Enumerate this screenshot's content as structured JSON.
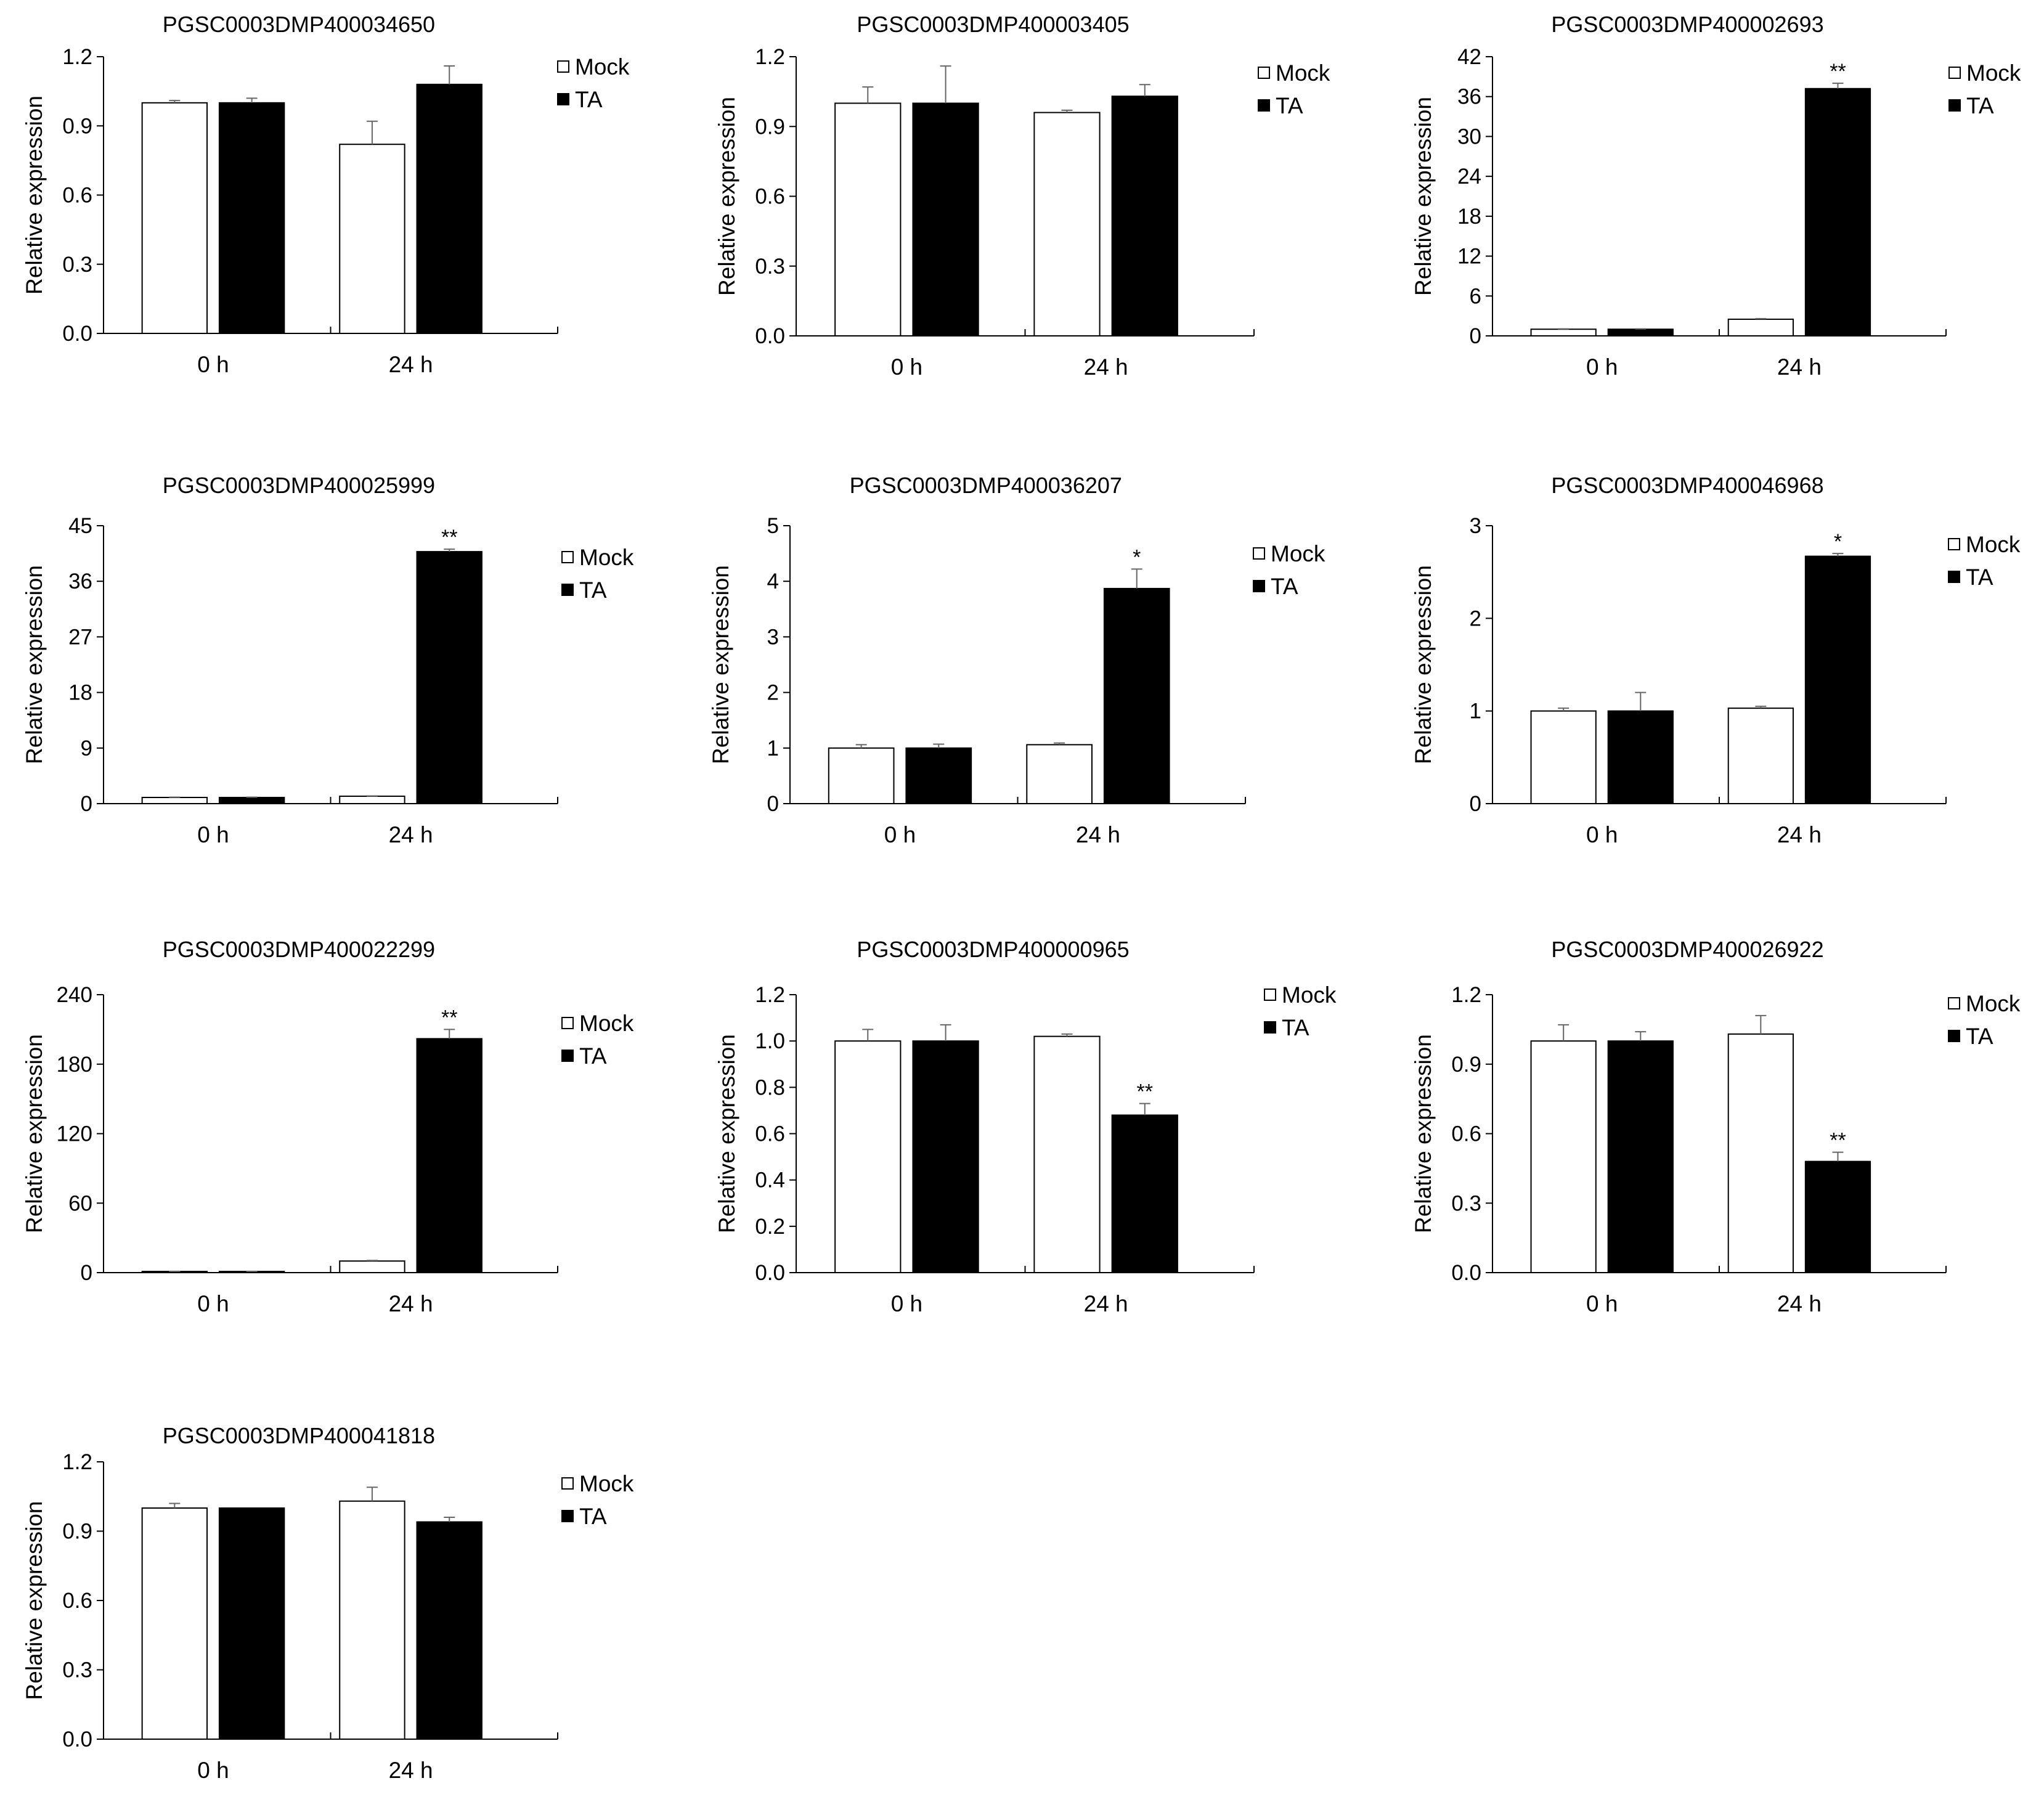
{
  "figure": {
    "y_axis_label": "Relative expression"
  },
  "legend": {
    "mock_label": "Mock",
    "ta_label": "TA",
    "mock_color": "#ffffff",
    "ta_color": "#000000"
  },
  "chart_data": [
    {
      "type": "bar",
      "title": "PGSC0003DMP400034650",
      "categories": [
        "0 h",
        "24 h"
      ],
      "series": [
        {
          "name": "Mock",
          "values": [
            1.0,
            0.82
          ],
          "errors": [
            0.01,
            0.1
          ]
        },
        {
          "name": "TA",
          "values": [
            1.0,
            1.08
          ],
          "errors": [
            0.02,
            0.08
          ]
        }
      ],
      "significance": [
        "",
        ""
      ],
      "ylabel": "Relative expression",
      "ylim": [
        0,
        1.2
      ],
      "yticks": [
        "0.0",
        "0.3",
        "0.6",
        "0.9",
        "1.2"
      ]
    },
    {
      "type": "bar",
      "title": "PGSC0003DMP400003405",
      "categories": [
        "0 h",
        "24 h"
      ],
      "series": [
        {
          "name": "Mock",
          "values": [
            1.0,
            0.96
          ],
          "errors": [
            0.07,
            0.01
          ]
        },
        {
          "name": "TA",
          "values": [
            1.0,
            1.03
          ],
          "errors": [
            0.16,
            0.05
          ]
        }
      ],
      "significance": [
        "",
        ""
      ],
      "ylabel": "Relative expression",
      "ylim": [
        0,
        1.2
      ],
      "yticks": [
        "0.0",
        "0.3",
        "0.6",
        "0.9",
        "1.2"
      ]
    },
    {
      "type": "bar",
      "title": "PGSC0003DMP400002693",
      "categories": [
        "0 h",
        "24 h"
      ],
      "series": [
        {
          "name": "Mock",
          "values": [
            1.0,
            2.5
          ],
          "errors": [
            0.05,
            0.1
          ]
        },
        {
          "name": "TA",
          "values": [
            1.0,
            37.2
          ],
          "errors": [
            0.05,
            0.8
          ]
        }
      ],
      "significance": [
        "",
        "**"
      ],
      "ylabel": "Relative expression",
      "ylim": [
        0,
        42
      ],
      "yticks": [
        "0",
        "6",
        "12",
        "18",
        "24",
        "30",
        "36",
        "42"
      ]
    },
    {
      "type": "bar",
      "title": "PGSC0003DMP400025999",
      "categories": [
        "0 h",
        "24 h"
      ],
      "series": [
        {
          "name": "Mock",
          "values": [
            1.0,
            1.2
          ],
          "errors": [
            0.05,
            0.05
          ]
        },
        {
          "name": "TA",
          "values": [
            1.0,
            40.8
          ],
          "errors": [
            0.05,
            0.4
          ]
        }
      ],
      "significance": [
        "",
        "**"
      ],
      "ylabel": "Relative expression",
      "ylim": [
        0,
        45
      ],
      "yticks": [
        "0",
        "9",
        "18",
        "27",
        "36",
        "45"
      ]
    },
    {
      "type": "bar",
      "title": "PGSC0003DMP400036207",
      "categories": [
        "0 h",
        "24 h"
      ],
      "series": [
        {
          "name": "Mock",
          "values": [
            1.0,
            1.06
          ],
          "errors": [
            0.06,
            0.03
          ]
        },
        {
          "name": "TA",
          "values": [
            1.0,
            3.87
          ],
          "errors": [
            0.07,
            0.35
          ]
        }
      ],
      "significance": [
        "",
        "*"
      ],
      "ylabel": "Relative expression",
      "ylim": [
        0,
        5
      ],
      "yticks": [
        "0",
        "1",
        "2",
        "3",
        "4",
        "5"
      ]
    },
    {
      "type": "bar",
      "title": "PGSC0003DMP400046968",
      "categories": [
        "0 h",
        "24 h"
      ],
      "series": [
        {
          "name": "Mock",
          "values": [
            1.0,
            1.03
          ],
          "errors": [
            0.03,
            0.02
          ]
        },
        {
          "name": "TA",
          "values": [
            1.0,
            2.67
          ],
          "errors": [
            0.2,
            0.03
          ]
        }
      ],
      "significance": [
        "",
        "*"
      ],
      "ylabel": "Relative expression",
      "ylim": [
        0,
        3
      ],
      "yticks": [
        "0",
        "1",
        "2",
        "3"
      ]
    },
    {
      "type": "bar",
      "title": "PGSC0003DMP400022299",
      "categories": [
        "0 h",
        "24 h"
      ],
      "series": [
        {
          "name": "Mock",
          "values": [
            1.0,
            10.0
          ],
          "errors": [
            0.1,
            0.5
          ]
        },
        {
          "name": "TA",
          "values": [
            1.0,
            202.0
          ],
          "errors": [
            0.1,
            8.0
          ]
        }
      ],
      "significance": [
        "",
        "**"
      ],
      "ylabel": "Relative expression",
      "ylim": [
        0,
        240
      ],
      "yticks": [
        "0",
        "60",
        "120",
        "180",
        "240"
      ]
    },
    {
      "type": "bar",
      "title": "PGSC0003DMP400000965",
      "categories": [
        "0 h",
        "24 h"
      ],
      "series": [
        {
          "name": "Mock",
          "values": [
            1.0,
            1.02
          ],
          "errors": [
            0.05,
            0.01
          ]
        },
        {
          "name": "TA",
          "values": [
            1.0,
            0.68
          ],
          "errors": [
            0.07,
            0.05
          ]
        }
      ],
      "significance": [
        "",
        "**"
      ],
      "ylabel": "Relative expression",
      "ylim": [
        0,
        1.2
      ],
      "yticks": [
        "0.0",
        "0.2",
        "0.4",
        "0.6",
        "0.8",
        "1.0",
        "1.2"
      ]
    },
    {
      "type": "bar",
      "title": "PGSC0003DMP400026922",
      "categories": [
        "0 h",
        "24 h"
      ],
      "series": [
        {
          "name": "Mock",
          "values": [
            1.0,
            1.03
          ],
          "errors": [
            0.07,
            0.08
          ]
        },
        {
          "name": "TA",
          "values": [
            1.0,
            0.48
          ],
          "errors": [
            0.04,
            0.04
          ]
        }
      ],
      "significance": [
        "",
        "**"
      ],
      "ylabel": "Relative expression",
      "ylim": [
        0,
        1.2
      ],
      "yticks": [
        "0.0",
        "0.3",
        "0.6",
        "0.9",
        "1.2"
      ]
    },
    {
      "type": "bar",
      "title": "PGSC0003DMP400041818",
      "categories": [
        "0 h",
        "24 h"
      ],
      "series": [
        {
          "name": "Mock",
          "values": [
            1.0,
            1.03
          ],
          "errors": [
            0.02,
            0.06
          ]
        },
        {
          "name": "TA",
          "values": [
            1.0,
            0.94
          ],
          "errors": [
            0.0,
            0.02
          ]
        }
      ],
      "significance": [
        "",
        ""
      ],
      "ylabel": "Relative expression",
      "ylim": [
        0,
        1.2
      ],
      "yticks": [
        "0.0",
        "0.3",
        "0.6",
        "0.9",
        "1.2"
      ]
    }
  ]
}
